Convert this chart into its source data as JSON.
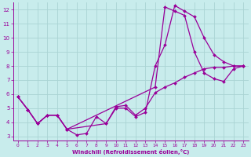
{
  "bg_color": "#c8ecec",
  "grid_color": "#aad4d4",
  "line_color": "#990099",
  "marker_color": "#990099",
  "xlabel": "Windchill (Refroidissement éolien,°C)",
  "xlabel_color": "#990099",
  "tick_color": "#990099",
  "xlim": [
    -0.5,
    23.5
  ],
  "ylim": [
    2.7,
    12.5
  ],
  "yticks": [
    3,
    4,
    5,
    6,
    7,
    8,
    9,
    10,
    11,
    12
  ],
  "xticks": [
    0,
    1,
    2,
    3,
    4,
    5,
    6,
    7,
    8,
    9,
    10,
    11,
    12,
    13,
    14,
    15,
    16,
    17,
    18,
    19,
    20,
    21,
    22,
    23
  ],
  "line1_x": [
    0,
    1,
    2,
    3,
    4,
    5,
    6,
    7,
    8,
    9,
    10,
    11,
    12,
    13,
    14,
    15,
    16,
    17,
    18,
    19,
    20,
    21,
    22,
    23
  ],
  "line1_y": [
    5.8,
    4.9,
    3.9,
    4.5,
    4.5,
    3.5,
    3.1,
    3.2,
    4.4,
    3.9,
    5.0,
    5.0,
    4.4,
    4.7,
    8.0,
    9.5,
    12.3,
    11.9,
    11.5,
    10.0,
    8.8,
    8.3,
    8.0,
    8.0
  ],
  "line2_x": [
    0,
    1,
    2,
    3,
    4,
    5,
    14,
    15,
    16,
    17,
    18,
    19,
    20,
    21,
    22,
    23
  ],
  "line2_y": [
    5.8,
    4.9,
    3.9,
    4.5,
    4.5,
    3.5,
    6.5,
    12.2,
    11.9,
    11.6,
    9.0,
    7.5,
    7.1,
    6.9,
    7.8,
    8.0
  ],
  "line3_x": [
    0,
    1,
    2,
    3,
    4,
    5,
    9,
    10,
    11,
    12,
    13,
    14,
    15,
    16,
    17,
    18,
    19,
    20,
    21,
    22,
    23
  ],
  "line3_y": [
    5.8,
    4.9,
    3.9,
    4.5,
    4.5,
    3.5,
    3.9,
    5.1,
    5.2,
    4.5,
    5.0,
    6.1,
    6.5,
    6.8,
    7.2,
    7.5,
    7.8,
    7.9,
    7.9,
    8.0,
    8.0
  ]
}
